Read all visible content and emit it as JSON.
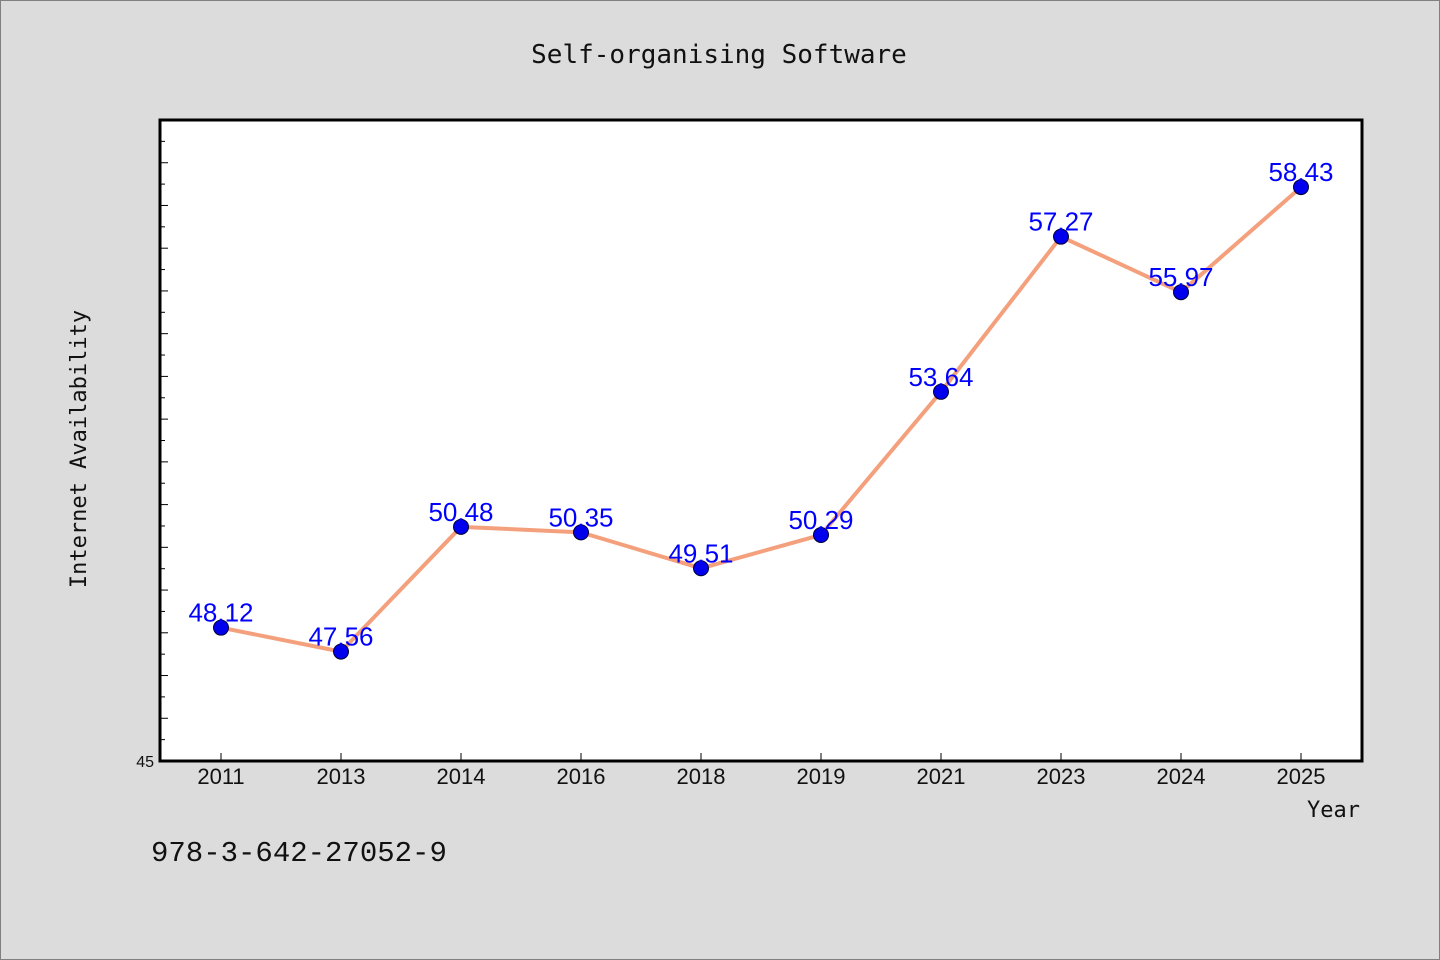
{
  "chart_data": {
    "type": "line",
    "title": "Self-organising Software",
    "xlabel": "Year",
    "ylabel": "Internet Availability",
    "categories": [
      "2011",
      "2013",
      "2014",
      "2016",
      "2018",
      "2019",
      "2021",
      "2023",
      "2024",
      "2025"
    ],
    "series": [
      {
        "values": [
          48.12,
          47.56,
          50.48,
          50.35,
          49.51,
          50.29,
          53.64,
          57.27,
          55.97,
          58.43
        ]
      }
    ],
    "value_labels": [
      "48.12",
      "47.56",
      "50.48",
      "50.35",
      "49.51",
      "50.29",
      "53.64",
      "57.27",
      "55.97",
      "58.43"
    ],
    "ylim": [
      45,
      60
    ],
    "y_tick_labels": [
      "45"
    ],
    "grid": false,
    "legend": "none",
    "colors": {
      "line": "#f4a07c",
      "marker": "#0000ee",
      "value_label": "#0000ff",
      "plot_background": "#ffffff",
      "page_background": "#dcdcdc"
    }
  },
  "footer": {
    "code": "978-3-642-27052-9"
  }
}
